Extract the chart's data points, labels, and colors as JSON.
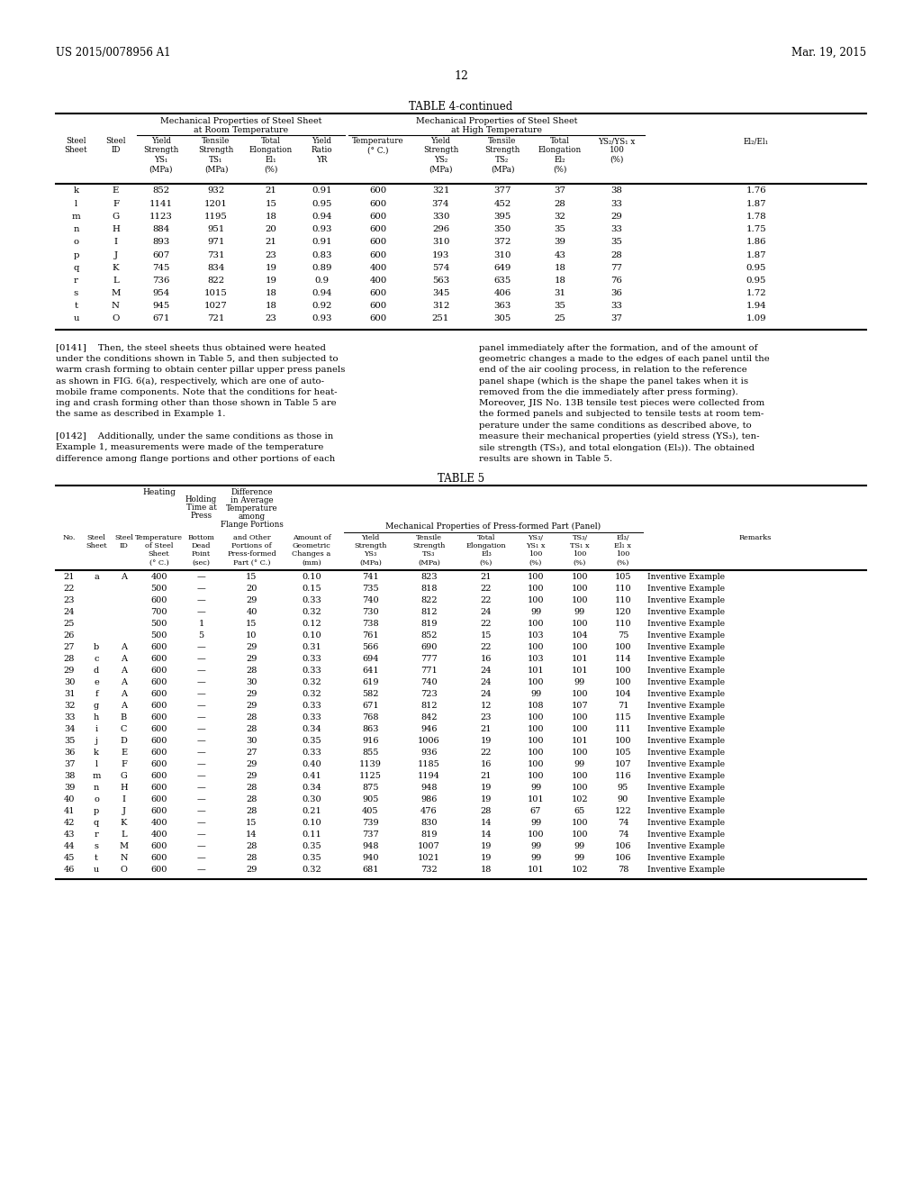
{
  "header_left": "US 2015/0078956 A1",
  "header_right": "Mar. 19, 2015",
  "page_number": "12",
  "table4_title": "TABLE 4-continued",
  "table4_data": [
    [
      "k",
      "E",
      "852",
      "932",
      "21",
      "0.91",
      "600",
      "321",
      "377",
      "37",
      "38",
      "1.76"
    ],
    [
      "l",
      "F",
      "1141",
      "1201",
      "15",
      "0.95",
      "600",
      "374",
      "452",
      "28",
      "33",
      "1.87"
    ],
    [
      "m",
      "G",
      "1123",
      "1195",
      "18",
      "0.94",
      "600",
      "330",
      "395",
      "32",
      "29",
      "1.78"
    ],
    [
      "n",
      "H",
      "884",
      "951",
      "20",
      "0.93",
      "600",
      "296",
      "350",
      "35",
      "33",
      "1.75"
    ],
    [
      "o",
      "I",
      "893",
      "971",
      "21",
      "0.91",
      "600",
      "310",
      "372",
      "39",
      "35",
      "1.86"
    ],
    [
      "p",
      "J",
      "607",
      "731",
      "23",
      "0.83",
      "600",
      "193",
      "310",
      "43",
      "28",
      "1.87"
    ],
    [
      "q",
      "K",
      "745",
      "834",
      "19",
      "0.89",
      "400",
      "574",
      "649",
      "18",
      "77",
      "0.95"
    ],
    [
      "r",
      "L",
      "736",
      "822",
      "19",
      "0.9",
      "400",
      "563",
      "635",
      "18",
      "76",
      "0.95"
    ],
    [
      "s",
      "M",
      "954",
      "1015",
      "18",
      "0.94",
      "600",
      "345",
      "406",
      "31",
      "36",
      "1.72"
    ],
    [
      "t",
      "N",
      "945",
      "1027",
      "18",
      "0.92",
      "600",
      "312",
      "363",
      "35",
      "33",
      "1.94"
    ],
    [
      "u",
      "O",
      "671",
      "721",
      "23",
      "0.93",
      "600",
      "251",
      "305",
      "25",
      "37",
      "1.09"
    ]
  ],
  "table5_title": "TABLE 5",
  "table5_data": [
    [
      "21",
      "a",
      "A",
      "400",
      "—",
      "15",
      "0.10",
      "741",
      "823",
      "21",
      "100",
      "100",
      "105",
      "Inventive Example"
    ],
    [
      "22",
      "",
      "",
      "500",
      "—",
      "20",
      "0.15",
      "735",
      "818",
      "22",
      "100",
      "100",
      "110",
      "Inventive Example"
    ],
    [
      "23",
      "",
      "",
      "600",
      "—",
      "29",
      "0.33",
      "740",
      "822",
      "22",
      "100",
      "100",
      "110",
      "Inventive Example"
    ],
    [
      "24",
      "",
      "",
      "700",
      "—",
      "40",
      "0.32",
      "730",
      "812",
      "24",
      "99",
      "99",
      "120",
      "Inventive Example"
    ],
    [
      "25",
      "",
      "",
      "500",
      "1",
      "15",
      "0.12",
      "738",
      "819",
      "22",
      "100",
      "100",
      "110",
      "Inventive Example"
    ],
    [
      "26",
      "",
      "",
      "500",
      "5",
      "10",
      "0.10",
      "761",
      "852",
      "15",
      "103",
      "104",
      "75",
      "Inventive Example"
    ],
    [
      "27",
      "b",
      "A",
      "600",
      "—",
      "29",
      "0.31",
      "566",
      "690",
      "22",
      "100",
      "100",
      "100",
      "Inventive Example"
    ],
    [
      "28",
      "c",
      "A",
      "600",
      "—",
      "29",
      "0.33",
      "694",
      "777",
      "16",
      "103",
      "101",
      "114",
      "Inventive Example"
    ],
    [
      "29",
      "d",
      "A",
      "600",
      "—",
      "28",
      "0.33",
      "641",
      "771",
      "24",
      "101",
      "101",
      "100",
      "Inventive Example"
    ],
    [
      "30",
      "e",
      "A",
      "600",
      "—",
      "30",
      "0.32",
      "619",
      "740",
      "24",
      "100",
      "99",
      "100",
      "Inventive Example"
    ],
    [
      "31",
      "f",
      "A",
      "600",
      "—",
      "29",
      "0.32",
      "582",
      "723",
      "24",
      "99",
      "100",
      "104",
      "Inventive Example"
    ],
    [
      "32",
      "g",
      "A",
      "600",
      "—",
      "29",
      "0.33",
      "671",
      "812",
      "12",
      "108",
      "107",
      "71",
      "Inventive Example"
    ],
    [
      "33",
      "h",
      "B",
      "600",
      "—",
      "28",
      "0.33",
      "768",
      "842",
      "23",
      "100",
      "100",
      "115",
      "Inventive Example"
    ],
    [
      "34",
      "i",
      "C",
      "600",
      "—",
      "28",
      "0.34",
      "863",
      "946",
      "21",
      "100",
      "100",
      "111",
      "Inventive Example"
    ],
    [
      "35",
      "j",
      "D",
      "600",
      "—",
      "30",
      "0.35",
      "916",
      "1006",
      "19",
      "100",
      "101",
      "100",
      "Inventive Example"
    ],
    [
      "36",
      "k",
      "E",
      "600",
      "—",
      "27",
      "0.33",
      "855",
      "936",
      "22",
      "100",
      "100",
      "105",
      "Inventive Example"
    ],
    [
      "37",
      "l",
      "F",
      "600",
      "—",
      "29",
      "0.40",
      "1139",
      "1185",
      "16",
      "100",
      "99",
      "107",
      "Inventive Example"
    ],
    [
      "38",
      "m",
      "G",
      "600",
      "—",
      "29",
      "0.41",
      "1125",
      "1194",
      "21",
      "100",
      "100",
      "116",
      "Inventive Example"
    ],
    [
      "39",
      "n",
      "H",
      "600",
      "—",
      "28",
      "0.34",
      "875",
      "948",
      "19",
      "99",
      "100",
      "95",
      "Inventive Example"
    ],
    [
      "40",
      "o",
      "I",
      "600",
      "—",
      "28",
      "0.30",
      "905",
      "986",
      "19",
      "101",
      "102",
      "90",
      "Inventive Example"
    ],
    [
      "41",
      "p",
      "J",
      "600",
      "—",
      "28",
      "0.21",
      "405",
      "476",
      "28",
      "67",
      "65",
      "122",
      "Inventive Example"
    ],
    [
      "42",
      "q",
      "K",
      "400",
      "—",
      "15",
      "0.10",
      "739",
      "830",
      "14",
      "99",
      "100",
      "74",
      "Inventive Example"
    ],
    [
      "43",
      "r",
      "L",
      "400",
      "—",
      "14",
      "0.11",
      "737",
      "819",
      "14",
      "100",
      "100",
      "74",
      "Inventive Example"
    ],
    [
      "44",
      "s",
      "M",
      "600",
      "—",
      "28",
      "0.35",
      "948",
      "1007",
      "19",
      "99",
      "99",
      "106",
      "Inventive Example"
    ],
    [
      "45",
      "t",
      "N",
      "600",
      "—",
      "28",
      "0.35",
      "940",
      "1021",
      "19",
      "99",
      "99",
      "106",
      "Inventive Example"
    ],
    [
      "46",
      "u",
      "O",
      "600",
      "—",
      "29",
      "0.32",
      "681",
      "732",
      "18",
      "101",
      "102",
      "78",
      "Inventive Example"
    ]
  ],
  "left_col_lines": [
    "[0141]    Then, the steel sheets thus obtained were heated",
    "under the conditions shown in Table 5, and then subjected to",
    "warm crash forming to obtain center pillar upper press panels",
    "as shown in FIG. 6(a), respectively, which are one of auto-",
    "mobile frame components. Note that the conditions for heat-",
    "ing and crash forming other than those shown in Table 5 are",
    "the same as described in Example 1.",
    "",
    "[0142]    Additionally, under the same conditions as those in",
    "Example 1, measurements were made of the temperature",
    "difference among flange portions and other portions of each"
  ],
  "right_col_lines": [
    "panel immediately after the formation, and of the amount of",
    "geometric changes a made to the edges of each panel until the",
    "end of the air cooling process, in relation to the reference",
    "panel shape (which is the shape the panel takes when it is",
    "removed from the die immediately after press forming).",
    "Moreover, JIS No. 13B tensile test pieces were collected from",
    "the formed panels and subjected to tensile tests at room tem-",
    "perature under the same conditions as described above, to",
    "measure their mechanical properties (yield stress (YS₃), ten-",
    "sile strength (TS₃), and total elongation (El₃)). The obtained",
    "results are shown in Table 5."
  ]
}
